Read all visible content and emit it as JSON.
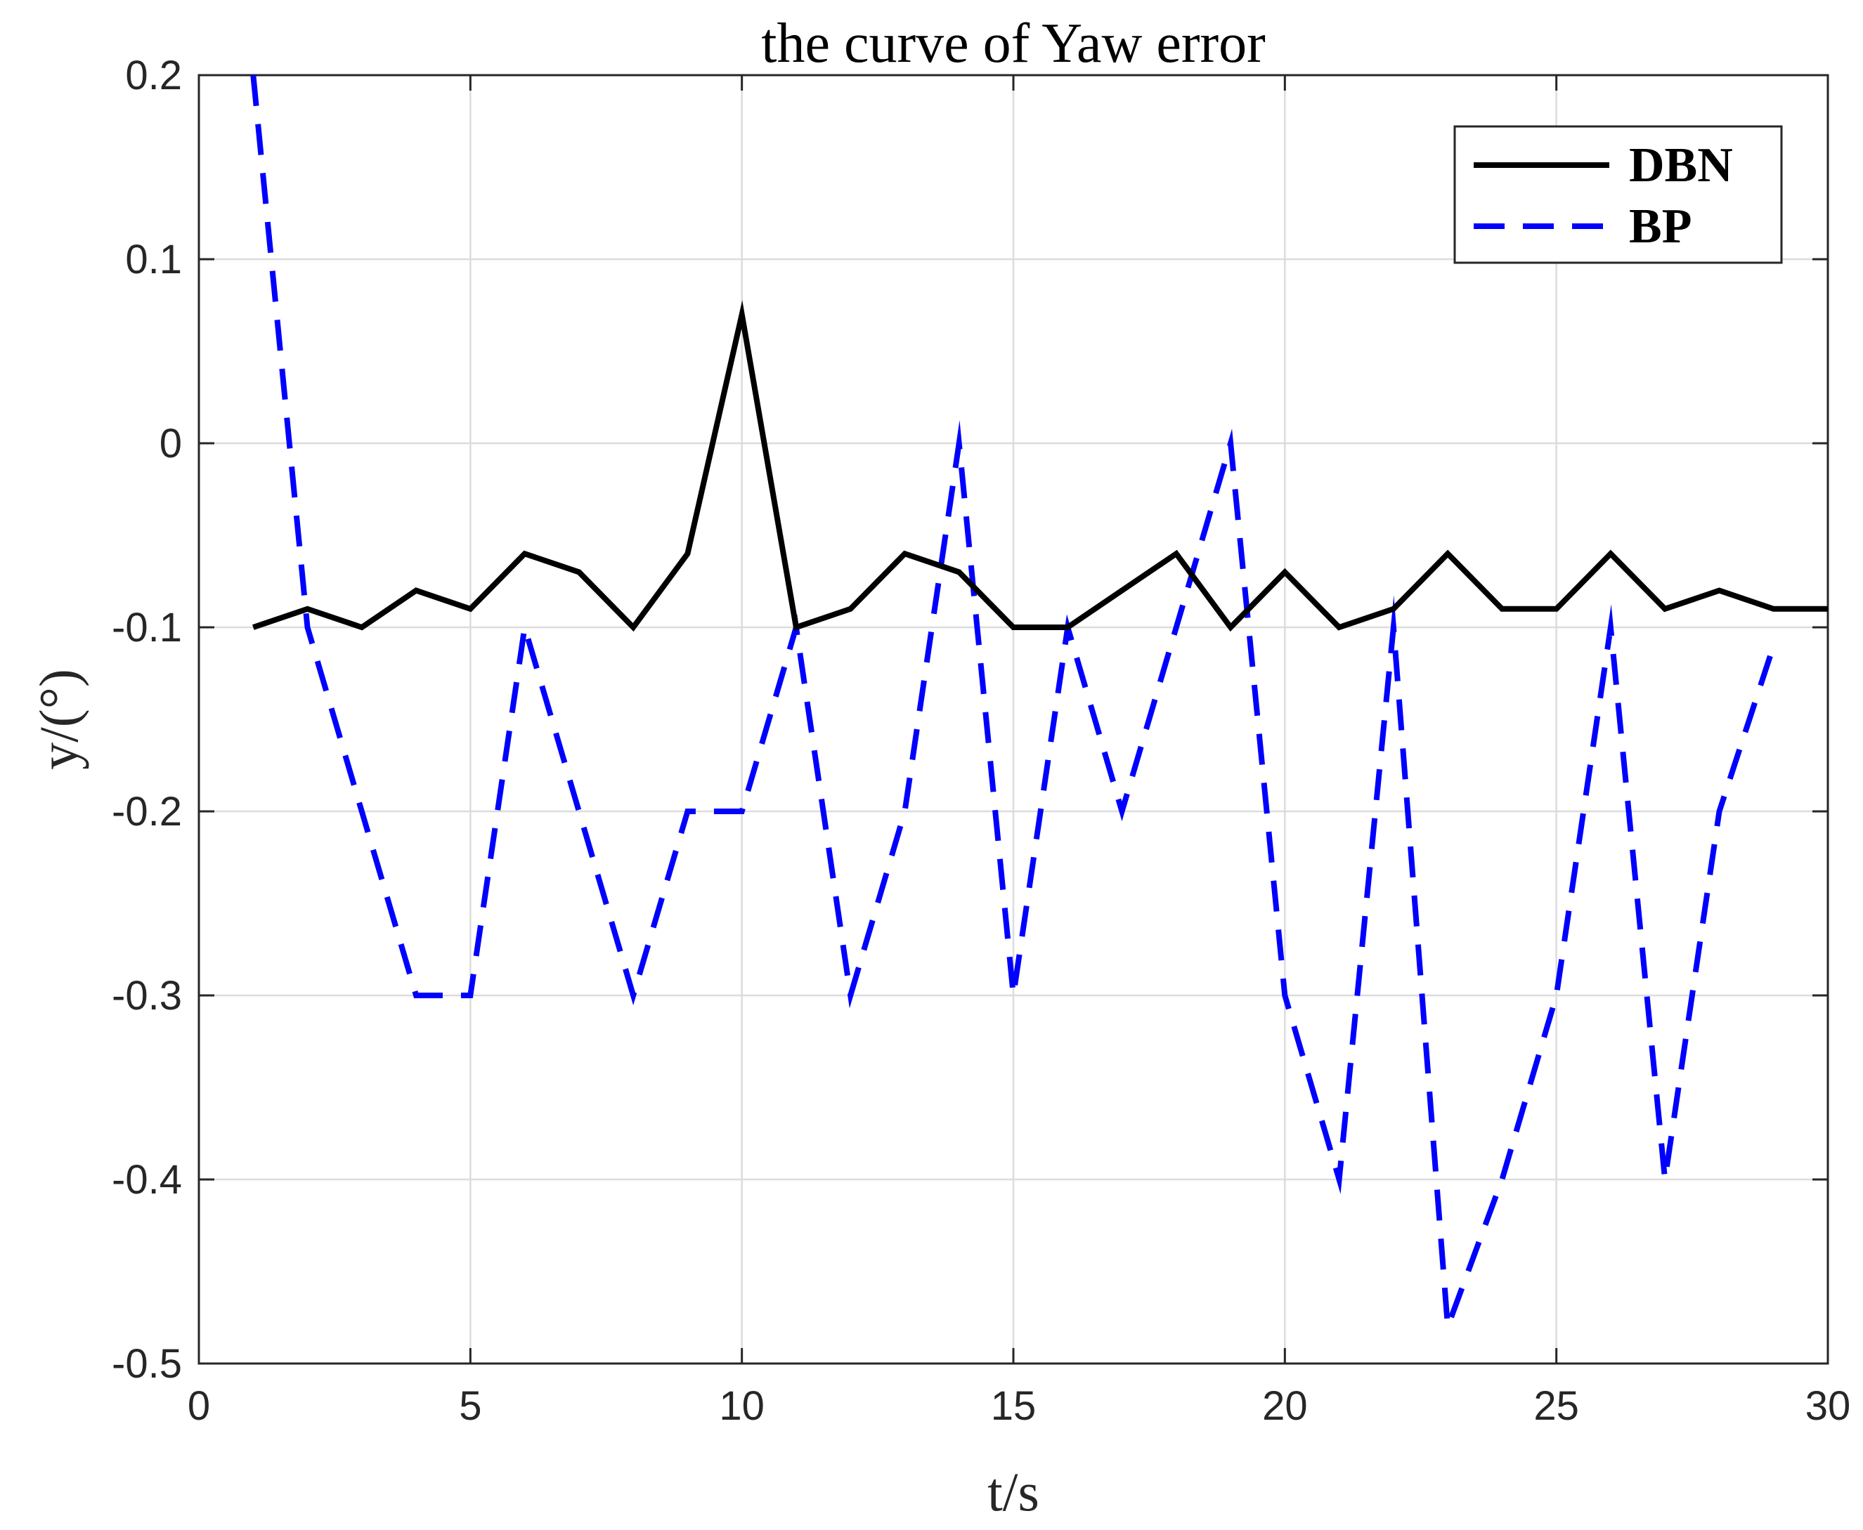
{
  "chart_data": {
    "type": "line",
    "title": "the curve of Yaw error",
    "xlabel": "t/s",
    "ylabel": "y/(°)",
    "xlim": [
      0,
      30
    ],
    "ylim": [
      -0.5,
      0.2
    ],
    "xticks": [
      "0",
      "5",
      "10",
      "15",
      "20",
      "25",
      "30"
    ],
    "yticks": [
      "0.2",
      "0.1",
      "0",
      "-0.1",
      "-0.2",
      "-0.3",
      "-0.4",
      "-0.5"
    ],
    "grid": true,
    "legend_position": "top-right",
    "series": [
      {
        "name": "DBN",
        "color": "#000000",
        "style": "solid",
        "x": [
          1,
          2,
          3,
          4,
          5,
          6,
          7,
          8,
          9,
          10,
          11,
          12,
          13,
          14,
          15,
          16,
          17,
          18,
          19,
          20,
          21,
          22,
          23,
          24,
          25,
          26,
          27,
          28,
          29,
          30
        ],
        "y": [
          -0.1,
          -0.09,
          -0.1,
          -0.08,
          -0.09,
          -0.06,
          -0.07,
          -0.1,
          -0.06,
          0.07,
          -0.1,
          -0.09,
          -0.06,
          -0.07,
          -0.1,
          -0.1,
          -0.08,
          -0.06,
          -0.1,
          -0.07,
          -0.1,
          -0.09,
          -0.06,
          -0.09,
          -0.09,
          -0.06,
          -0.09,
          -0.08,
          -0.09,
          -0.09
        ]
      },
      {
        "name": "BP",
        "color": "#0000ff",
        "style": "dashed",
        "x": [
          1,
          2,
          3,
          4,
          5,
          6,
          7,
          8,
          9,
          10,
          11,
          12,
          13,
          14,
          15,
          16,
          17,
          18,
          19,
          20,
          21,
          22,
          23,
          24,
          25,
          26,
          27,
          28,
          29
        ],
        "y": [
          0.2,
          -0.1,
          -0.2,
          -0.3,
          -0.3,
          -0.1,
          -0.2,
          -0.3,
          -0.2,
          -0.2,
          -0.1,
          -0.3,
          -0.2,
          0.0,
          -0.3,
          -0.1,
          -0.2,
          -0.1,
          0.0,
          -0.3,
          -0.4,
          -0.1,
          -0.48,
          -0.4,
          -0.3,
          -0.1,
          -0.4,
          -0.2,
          -0.11
        ]
      }
    ]
  }
}
